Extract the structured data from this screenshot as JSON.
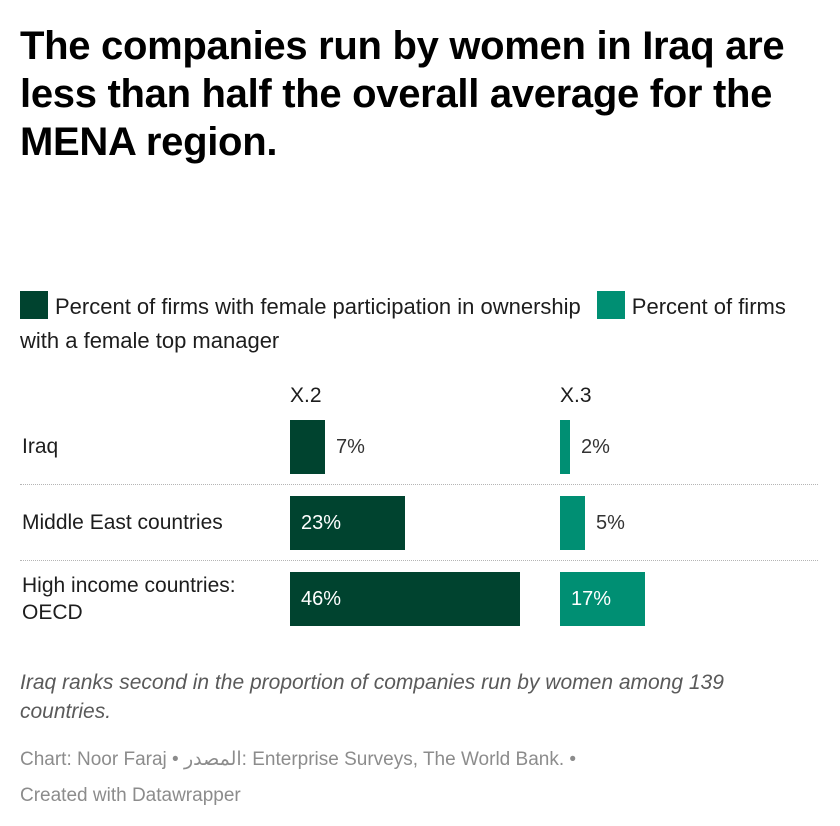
{
  "title": "The companies run by women in Iraq are less than half the overall average  for the MENA region.",
  "legend": [
    {
      "label": "Percent of firms with female participation in ownership",
      "color": "#00432f"
    },
    {
      "label": "Percent of firms with a female top manager",
      "color": "#008f73"
    }
  ],
  "column_headers": [
    "X.2",
    "X.3"
  ],
  "rows": [
    {
      "label": "Iraq"
    },
    {
      "label": "Middle East countries"
    },
    {
      "label": "High income countries: OECD"
    }
  ],
  "chart_data": {
    "type": "bar",
    "title": "The companies run by women in Iraq are less than half the overall average  for the MENA region.",
    "categories": [
      "Iraq",
      "Middle East countries",
      "High income countries: OECD"
    ],
    "series": [
      {
        "name": "Percent of firms with female participation in ownership",
        "column": "X.2",
        "values": [
          7,
          23,
          46
        ],
        "labels": [
          "7%",
          "23%",
          "46%"
        ],
        "color": "#00432f"
      },
      {
        "name": "Percent of firms with a female top manager",
        "column": "X.3",
        "values": [
          2,
          5,
          17
        ],
        "labels": [
          "2%",
          "5%",
          "17%"
        ],
        "color": "#008f73"
      }
    ],
    "orientation": "horizontal",
    "layout": "split-bars"
  },
  "note": "Iraq ranks second in the proportion of companies run by women among 139 countries.",
  "footer": {
    "line1": "Chart: Noor Faraj • المصدر: Enterprise Surveys, The World Bank. •",
    "line2": "Created with Datawrapper"
  }
}
